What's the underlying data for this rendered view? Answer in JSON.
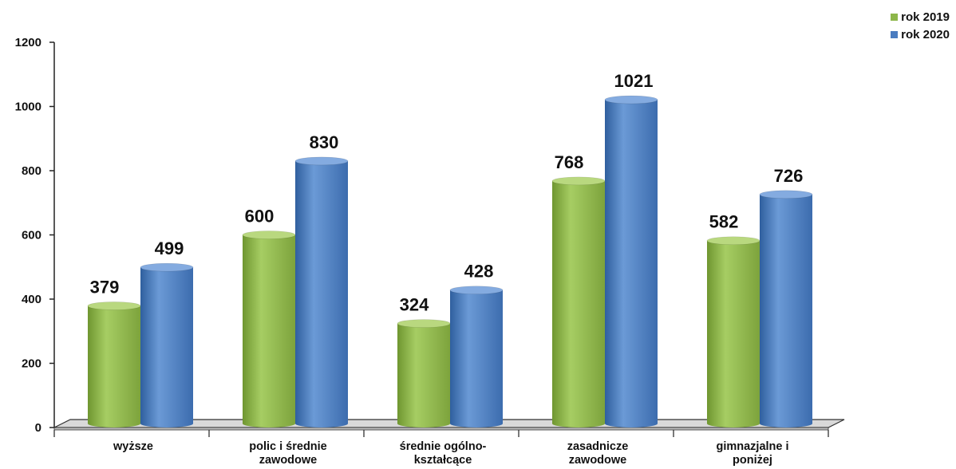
{
  "chart_data": {
    "type": "bar",
    "categories": [
      [
        "wyższe"
      ],
      [
        "polic i średnie",
        "zawodowe"
      ],
      [
        "średnie ogólno-",
        "kształcące"
      ],
      [
        "zasadnicze",
        "zawodowe"
      ],
      [
        "gimnazjalne i",
        "poniżej"
      ]
    ],
    "series": [
      {
        "name": "rok 2019",
        "color": "#8db64a",
        "values": [
          379,
          600,
          324,
          768,
          582
        ]
      },
      {
        "name": "rok 2020",
        "color": "#4a7cc0",
        "values": [
          499,
          830,
          428,
          1021,
          726
        ]
      }
    ],
    "ylim": [
      0,
      1200
    ],
    "yticks": [
      0,
      200,
      400,
      600,
      800,
      1000,
      1200
    ],
    "title": "",
    "xlabel": "",
    "ylabel": "",
    "grid": false,
    "legend_position": "top-right"
  }
}
